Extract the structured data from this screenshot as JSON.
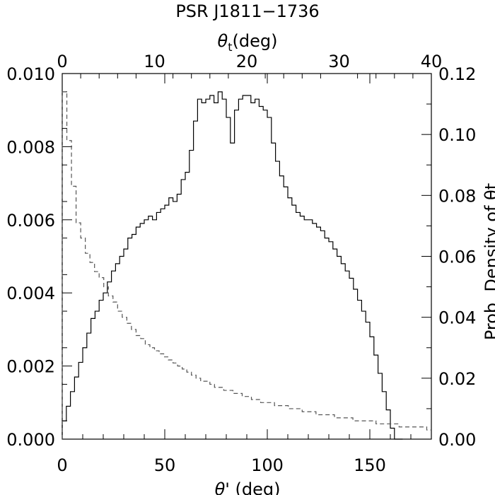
{
  "chart_data": {
    "type": "line",
    "title": "PSR J1811−1736",
    "xlabel": "θ' (deg)",
    "x2label": "θt(deg)",
    "x2label_parts": {
      "base": "θ",
      "sub": "t",
      "rest": "(deg)"
    },
    "xlabel_parts": {
      "base": "θ",
      "rest": "' (deg)"
    },
    "ylabel_right": "Prob. Density of θt",
    "xlim": [
      0,
      180
    ],
    "x2lim": [
      0,
      40
    ],
    "ylim": [
      0,
      0.01
    ],
    "y2lim": [
      0,
      0.12
    ],
    "x_ticks": [
      "0",
      "50",
      "100",
      "150"
    ],
    "x2_ticks": [
      "0",
      "10",
      "20",
      "30",
      "40"
    ],
    "y_ticks": [
      "0.000",
      "0.002",
      "0.004",
      "0.006",
      "0.008",
      "0.010"
    ],
    "y2_ticks": [
      "0.00",
      "0.02",
      "0.04",
      "0.06",
      "0.08",
      "0.10",
      "0.12"
    ],
    "series": [
      {
        "style": "solid",
        "axis": "bottom-left",
        "bin_width": 2,
        "bin_start": 0,
        "values": [
          0.0005,
          0.0009,
          0.0013,
          0.0017,
          0.0021,
          0.0025,
          0.0029,
          0.0033,
          0.0035,
          0.0038,
          0.004,
          0.0043,
          0.0046,
          0.0048,
          0.005,
          0.0052,
          0.0055,
          0.0056,
          0.0058,
          0.0059,
          0.006,
          0.0061,
          0.006,
          0.0062,
          0.0063,
          0.0064,
          0.0066,
          0.0065,
          0.0067,
          0.0071,
          0.0073,
          0.0079,
          0.0087,
          0.0093,
          0.0092,
          0.0093,
          0.0094,
          0.0092,
          0.0095,
          0.0093,
          0.0088,
          0.0081,
          0.009,
          0.0093,
          0.0094,
          0.0094,
          0.0092,
          0.0093,
          0.0091,
          0.009,
          0.0088,
          0.0081,
          0.0076,
          0.0072,
          0.0069,
          0.0066,
          0.0064,
          0.0062,
          0.0061,
          0.006,
          0.006,
          0.0059,
          0.0058,
          0.0057,
          0.0055,
          0.0054,
          0.0052,
          0.005,
          0.0048,
          0.0046,
          0.0044,
          0.0041,
          0.0038,
          0.0035,
          0.0032,
          0.0028,
          0.0023,
          0.0018,
          0.0013,
          0.0008,
          0.0003,
          0.0,
          0.0
        ]
      },
      {
        "style": "dashed",
        "axis": "top-right",
        "bin_width": 0.5,
        "bin_start": 0,
        "values": [
          0.114,
          0.098,
          0.083,
          0.071,
          0.066,
          0.061,
          0.058,
          0.055,
          0.053,
          0.05,
          0.047,
          0.045,
          0.042,
          0.04,
          0.038,
          0.036,
          0.034,
          0.033,
          0.031,
          0.03,
          0.029,
          0.028,
          0.027,
          0.026,
          0.025,
          0.024,
          0.023,
          0.022,
          0.021,
          0.02,
          0.019,
          0.019,
          0.018,
          0.017,
          0.017,
          0.016,
          0.016,
          0.015,
          0.015,
          0.014,
          0.014,
          0.013,
          0.013,
          0.012,
          0.012,
          0.012,
          0.011,
          0.011,
          0.011,
          0.01,
          0.01,
          0.01,
          0.009,
          0.009,
          0.009,
          0.008,
          0.008,
          0.008,
          0.008,
          0.007,
          0.007,
          0.007,
          0.007,
          0.006,
          0.006,
          0.006,
          0.006,
          0.006,
          0.005,
          0.005,
          0.005,
          0.005,
          0.005,
          0.004,
          0.004,
          0.004,
          0.004,
          0.004,
          0.004,
          0.003
        ]
      }
    ],
    "grid": false
  }
}
